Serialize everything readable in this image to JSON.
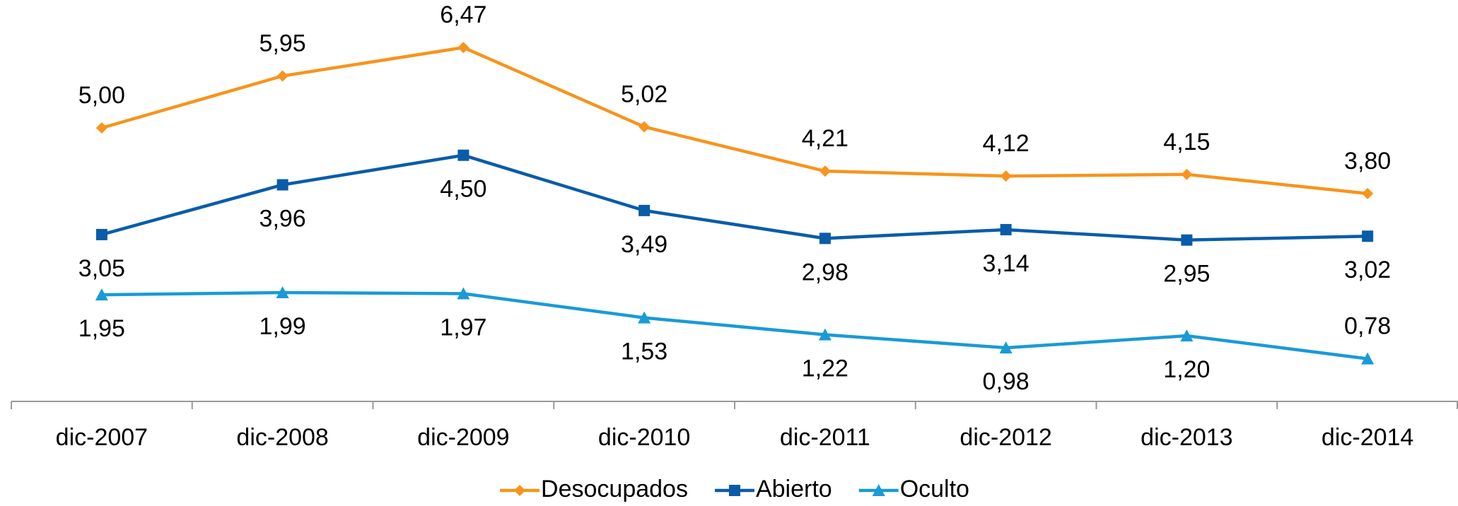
{
  "chart_data": {
    "type": "line",
    "categories": [
      "dic-2007",
      "dic-2008",
      "dic-2009",
      "dic-2010",
      "dic-2011",
      "dic-2012",
      "dic-2013",
      "dic-2014"
    ],
    "ylim": [
      0,
      7.3
    ],
    "legend": "bottom",
    "series": [
      {
        "name": "Desocupados",
        "color": "#f7941d",
        "marker": "diamond",
        "values": [
          5.0,
          5.95,
          6.47,
          5.02,
          4.21,
          4.12,
          4.15,
          3.8
        ],
        "value_labels": [
          "5,00",
          "5,95",
          "6,47",
          "5,02",
          "4,21",
          "4,12",
          "4,15",
          "3,80"
        ],
        "label_positions": [
          "above",
          "above",
          "above",
          "above",
          "above",
          "above",
          "above",
          "above"
        ]
      },
      {
        "name": "Abierto",
        "color": "#0a5ca8",
        "marker": "square",
        "values": [
          3.05,
          3.96,
          4.5,
          3.49,
          2.98,
          3.14,
          2.95,
          3.02
        ],
        "value_labels": [
          "3,05",
          "3,96",
          "4,50",
          "3,49",
          "2,98",
          "3,14",
          "2,95",
          "3,02"
        ],
        "label_positions": [
          "below",
          "below",
          "below",
          "below",
          "below",
          "below",
          "below",
          "below"
        ]
      },
      {
        "name": "Oculto",
        "color": "#1a9ad6",
        "marker": "triangle",
        "values": [
          1.95,
          1.99,
          1.97,
          1.53,
          1.22,
          0.98,
          1.2,
          0.78
        ],
        "value_labels": [
          "1,95",
          "1,99",
          "1,97",
          "1,53",
          "1,22",
          "0,98",
          "1,20",
          "0,78"
        ],
        "label_positions": [
          "below",
          "below",
          "below",
          "below",
          "below",
          "below",
          "below",
          "above"
        ]
      }
    ]
  }
}
